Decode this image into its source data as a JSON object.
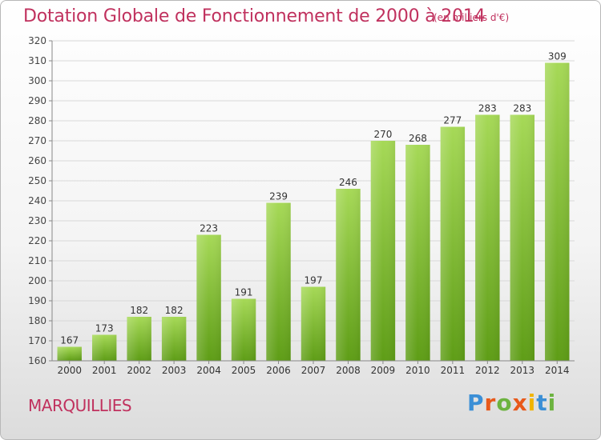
{
  "title": "Dotation Globale de Fonctionnement de 2000 à 2014",
  "subtitle": "(en milliers d'€)",
  "town": "MARQUILLIES",
  "logo": "Proxiti",
  "colors": {
    "title": "#c0315e",
    "bar_top": "#a6d957",
    "bar_bottom": "#5e9d16",
    "grid": "#d8d8d8"
  },
  "chart_data": {
    "type": "bar",
    "title": "Dotation Globale de Fonctionnement de 2000 à 2014",
    "subtitle": "(en milliers d'€)",
    "categories": [
      "2000",
      "2001",
      "2002",
      "2003",
      "2004",
      "2005",
      "2006",
      "2007",
      "2008",
      "2009",
      "2010",
      "2011",
      "2012",
      "2013",
      "2014"
    ],
    "values": [
      167,
      173,
      182,
      182,
      223,
      191,
      239,
      197,
      246,
      270,
      268,
      277,
      283,
      283,
      309
    ],
    "ylim": [
      160,
      320
    ],
    "yticks": [
      160,
      170,
      180,
      190,
      200,
      210,
      220,
      230,
      240,
      250,
      260,
      270,
      280,
      290,
      300,
      310,
      320
    ],
    "grid": true,
    "data_labels": true
  }
}
